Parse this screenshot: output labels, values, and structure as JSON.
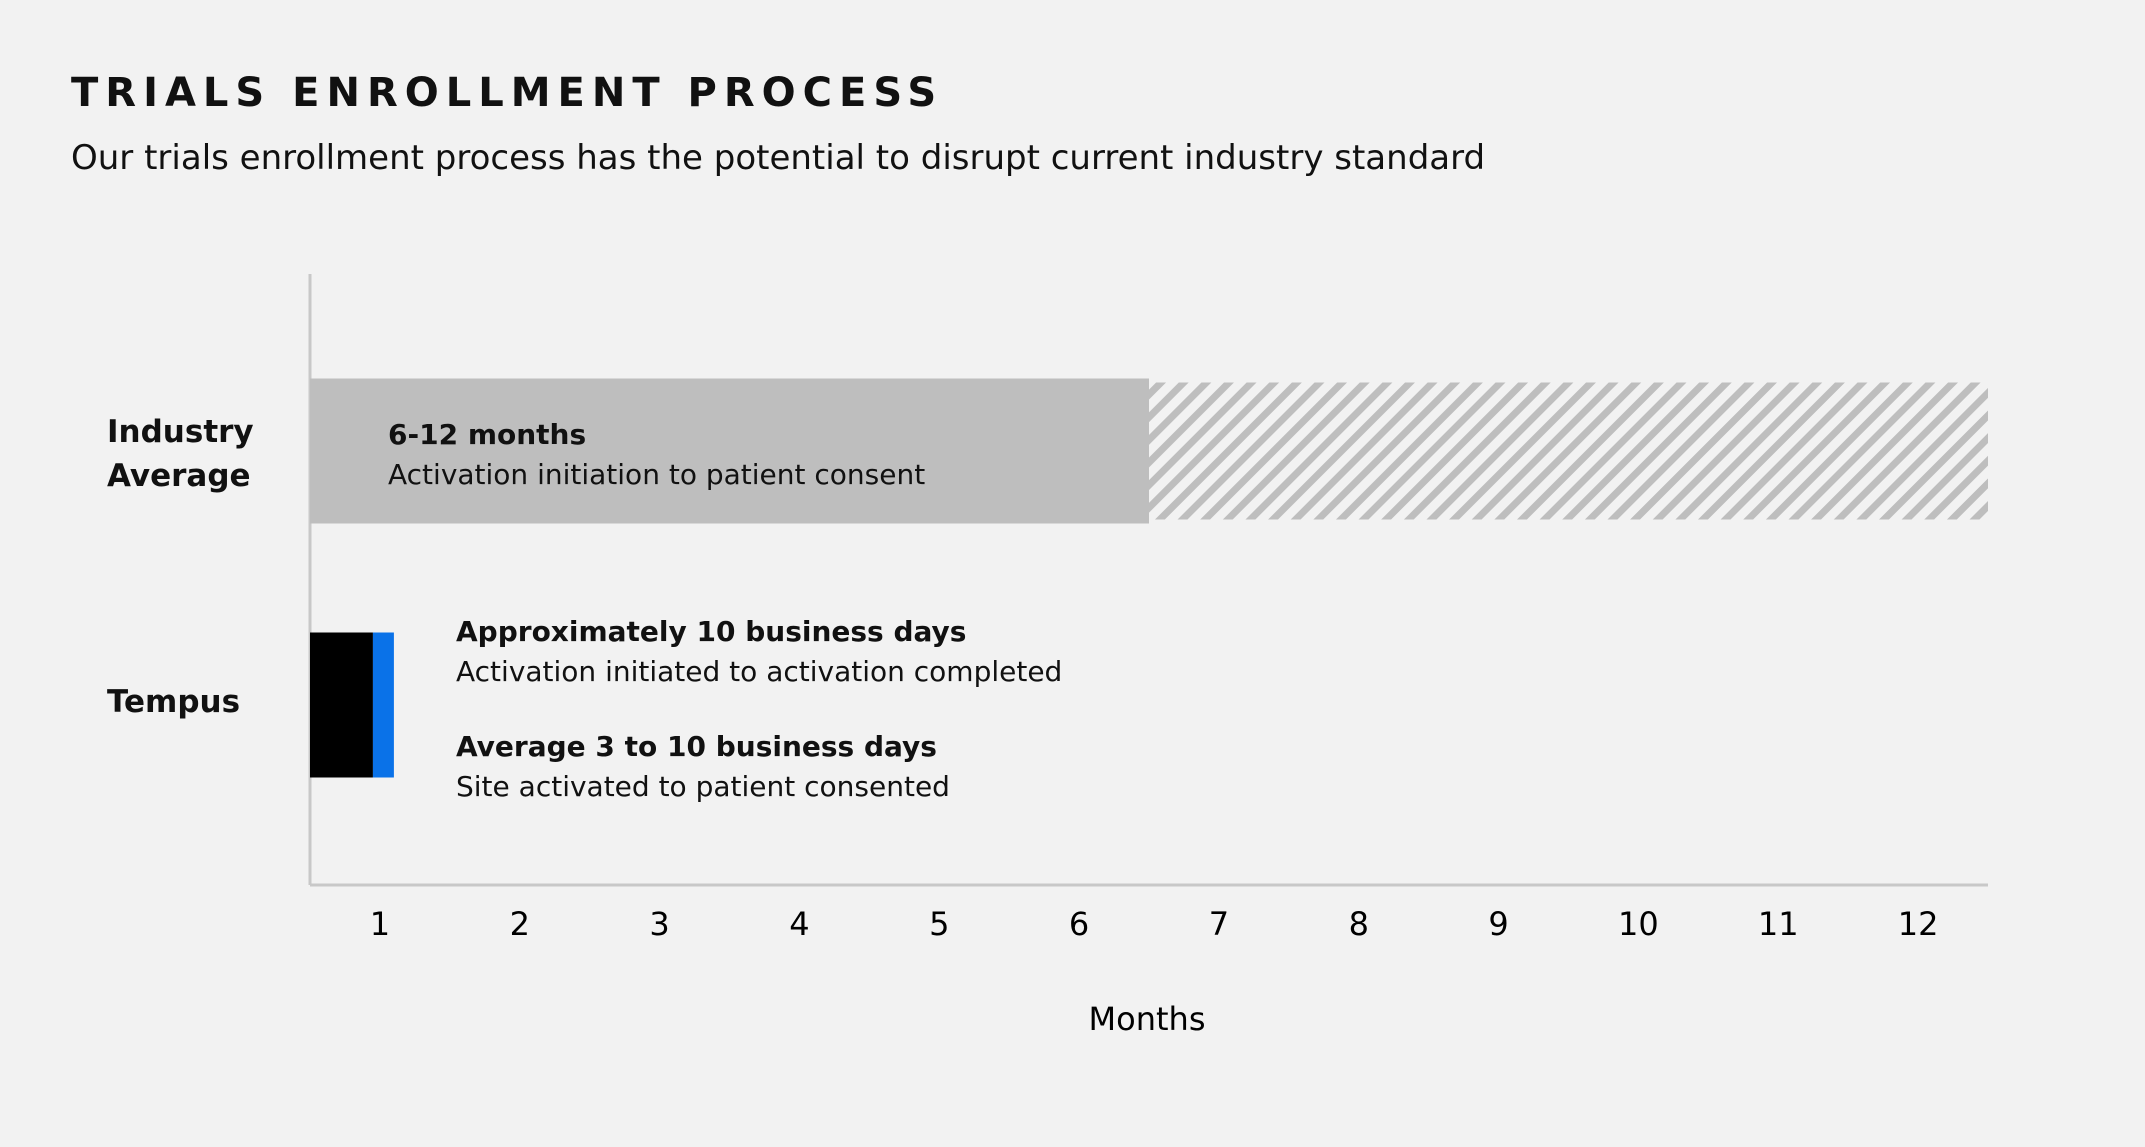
{
  "chart_data": {
    "type": "bar",
    "orientation": "horizontal",
    "stacked": true,
    "title": "TRIALS ENROLLMENT PROCESS",
    "subtitle": "Our trials enrollment process has the potential to disrupt current industry standard",
    "categories": [
      "Industry Average",
      "Tempus"
    ],
    "series": [
      {
        "color": "#bebebe",
        "values": [
          6,
          null
        ]
      },
      {
        "color": "#bebebe",
        "pattern": "hatch",
        "values": [
          6,
          null
        ]
      },
      {
        "color": "#000000",
        "values": [
          null,
          0.45
        ]
      },
      {
        "color": "#0a72e8",
        "values": [
          null,
          0.15
        ]
      }
    ],
    "annotations": [
      {
        "title": "6-12 months",
        "text": "Activation initiation to patient consent"
      },
      {
        "title": "Approximately 10 business days",
        "text": "Activation initiated to activation completed"
      },
      {
        "title": "Average 3 to 10 business days",
        "text": "Site activated to patient consented"
      }
    ],
    "x_label": "Months",
    "xlim": [
      0,
      12
    ],
    "xticks": [
      {
        "value": 0.5,
        "label": "1"
      },
      {
        "value": 1.5,
        "label": "2"
      },
      {
        "value": 2.5,
        "label": "3"
      },
      {
        "value": 3.5,
        "label": "4"
      },
      {
        "value": 4.5,
        "label": "5"
      },
      {
        "value": 5.5,
        "label": "6"
      },
      {
        "value": 6.5,
        "label": "7"
      },
      {
        "value": 7.5,
        "label": "8"
      },
      {
        "value": 8.5,
        "label": "9"
      },
      {
        "value": 9.5,
        "label": "10"
      },
      {
        "value": 10.5,
        "label": "11"
      },
      {
        "value": 11.5,
        "label": "12"
      }
    ],
    "grid": false
  }
}
